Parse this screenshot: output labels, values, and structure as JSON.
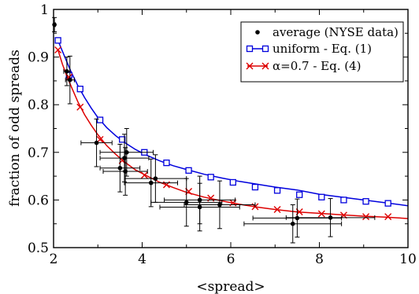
{
  "chart_data": {
    "type": "scatter",
    "xlabel": "<spread>",
    "ylabel": "fraction of odd spreads",
    "xlim": [
      2,
      10
    ],
    "ylim": [
      0.5,
      1.0
    ],
    "x_ticks": [
      2,
      4,
      6,
      8,
      10
    ],
    "x_tick_labels": [
      "2",
      "4",
      "6",
      "8",
      "10"
    ],
    "y_ticks": [
      0.5,
      0.6,
      0.7,
      0.8,
      0.9,
      1.0
    ],
    "y_tick_labels": [
      "0.5",
      "0.6",
      "0.7",
      "0.8",
      "0.9",
      "1"
    ],
    "legend_position": "top-right",
    "series": [
      {
        "name": "average (NYSE data)",
        "kind": "points_with_errorbars",
        "color": "#000000",
        "points": [
          {
            "x": 2.02,
            "y": 0.968,
            "xerr": 0.02,
            "yerr": 0.015
          },
          {
            "x": 2.3,
            "y": 0.87,
            "xerr": 0.07,
            "yerr": 0.03
          },
          {
            "x": 2.37,
            "y": 0.852,
            "xerr": 0.1,
            "yerr": 0.05
          },
          {
            "x": 2.97,
            "y": 0.72,
            "xerr": 0.35,
            "yerr": 0.05
          },
          {
            "x": 3.5,
            "y": 0.667,
            "xerr": 0.45,
            "yerr": 0.05
          },
          {
            "x": 3.6,
            "y": 0.688,
            "xerr": 0.55,
            "yerr": 0.05
          },
          {
            "x": 3.62,
            "y": 0.66,
            "xerr": 0.5,
            "yerr": 0.05
          },
          {
            "x": 3.65,
            "y": 0.7,
            "xerr": 0.6,
            "yerr": 0.05
          },
          {
            "x": 4.2,
            "y": 0.636,
            "xerr": 0.6,
            "yerr": 0.05
          },
          {
            "x": 4.3,
            "y": 0.645,
            "xerr": 0.7,
            "yerr": 0.05
          },
          {
            "x": 5.0,
            "y": 0.595,
            "xerr": 0.8,
            "yerr": 0.05
          },
          {
            "x": 5.3,
            "y": 0.6,
            "xerr": 0.8,
            "yerr": 0.05
          },
          {
            "x": 5.3,
            "y": 0.585,
            "xerr": 0.9,
            "yerr": 0.05
          },
          {
            "x": 5.75,
            "y": 0.59,
            "xerr": 0.8,
            "yerr": 0.05
          },
          {
            "x": 7.4,
            "y": 0.55,
            "xerr": 1.1,
            "yerr": 0.04
          },
          {
            "x": 7.5,
            "y": 0.562,
            "xerr": 1.0,
            "yerr": 0.04
          },
          {
            "x": 8.25,
            "y": 0.563,
            "xerr": 1.0,
            "yerr": 0.04
          }
        ]
      },
      {
        "name": "uniform - Eq. (1)",
        "kind": "line_with_markers",
        "color": "#0000dd",
        "marker": "square",
        "curve_x": [
          2.1,
          2.2,
          2.3,
          2.4,
          2.55,
          2.7,
          2.85,
          3.0,
          3.2,
          3.4,
          3.6,
          3.85,
          4.1,
          4.4,
          4.7,
          5.0,
          5.4,
          5.8,
          6.2,
          6.6,
          7.0,
          7.5,
          8.0,
          8.5,
          9.0,
          9.5,
          10.0
        ],
        "curve_y": [
          0.935,
          0.912,
          0.89,
          0.868,
          0.84,
          0.815,
          0.793,
          0.773,
          0.752,
          0.735,
          0.721,
          0.706,
          0.694,
          0.682,
          0.672,
          0.664,
          0.654,
          0.646,
          0.639,
          0.633,
          0.627,
          0.621,
          0.612,
          0.606,
          0.6,
          0.594,
          0.588
        ],
        "marker_x": [
          2.1,
          2.35,
          2.6,
          3.05,
          3.55,
          4.05,
          4.55,
          5.05,
          5.55,
          6.05,
          6.55,
          7.05,
          7.55,
          8.05,
          8.55,
          9.05,
          9.55
        ],
        "marker_y": [
          0.935,
          0.862,
          0.833,
          0.768,
          0.727,
          0.7,
          0.678,
          0.662,
          0.648,
          0.637,
          0.627,
          0.62,
          0.611,
          0.606,
          0.6,
          0.597,
          0.593
        ]
      },
      {
        "name": "α=0.7  - Eq. (4)",
        "kind": "line_with_markers",
        "color": "#dd0000",
        "marker": "x",
        "curve_x": [
          2.1,
          2.2,
          2.3,
          2.4,
          2.55,
          2.7,
          2.85,
          3.0,
          3.2,
          3.4,
          3.6,
          3.85,
          4.1,
          4.4,
          4.7,
          5.0,
          5.4,
          5.8,
          6.2,
          6.6,
          7.0,
          7.5,
          8.0,
          8.5,
          9.0,
          9.5,
          10.0
        ],
        "curve_y": [
          0.915,
          0.885,
          0.86,
          0.838,
          0.806,
          0.779,
          0.757,
          0.737,
          0.714,
          0.696,
          0.68,
          0.663,
          0.651,
          0.637,
          0.626,
          0.616,
          0.606,
          0.598,
          0.591,
          0.585,
          0.58,
          0.575,
          0.572,
          0.569,
          0.566,
          0.564,
          0.561
        ],
        "marker_x": [
          2.1,
          2.35,
          2.6,
          3.05,
          3.55,
          4.05,
          4.55,
          5.05,
          5.55,
          6.05,
          6.55,
          7.05,
          7.55,
          8.05,
          8.55,
          9.05,
          9.55
        ],
        "marker_y": [
          0.915,
          0.858,
          0.795,
          0.727,
          0.683,
          0.652,
          0.632,
          0.618,
          0.604,
          0.594,
          0.586,
          0.58,
          0.575,
          0.571,
          0.568,
          0.565,
          0.565
        ]
      }
    ]
  }
}
